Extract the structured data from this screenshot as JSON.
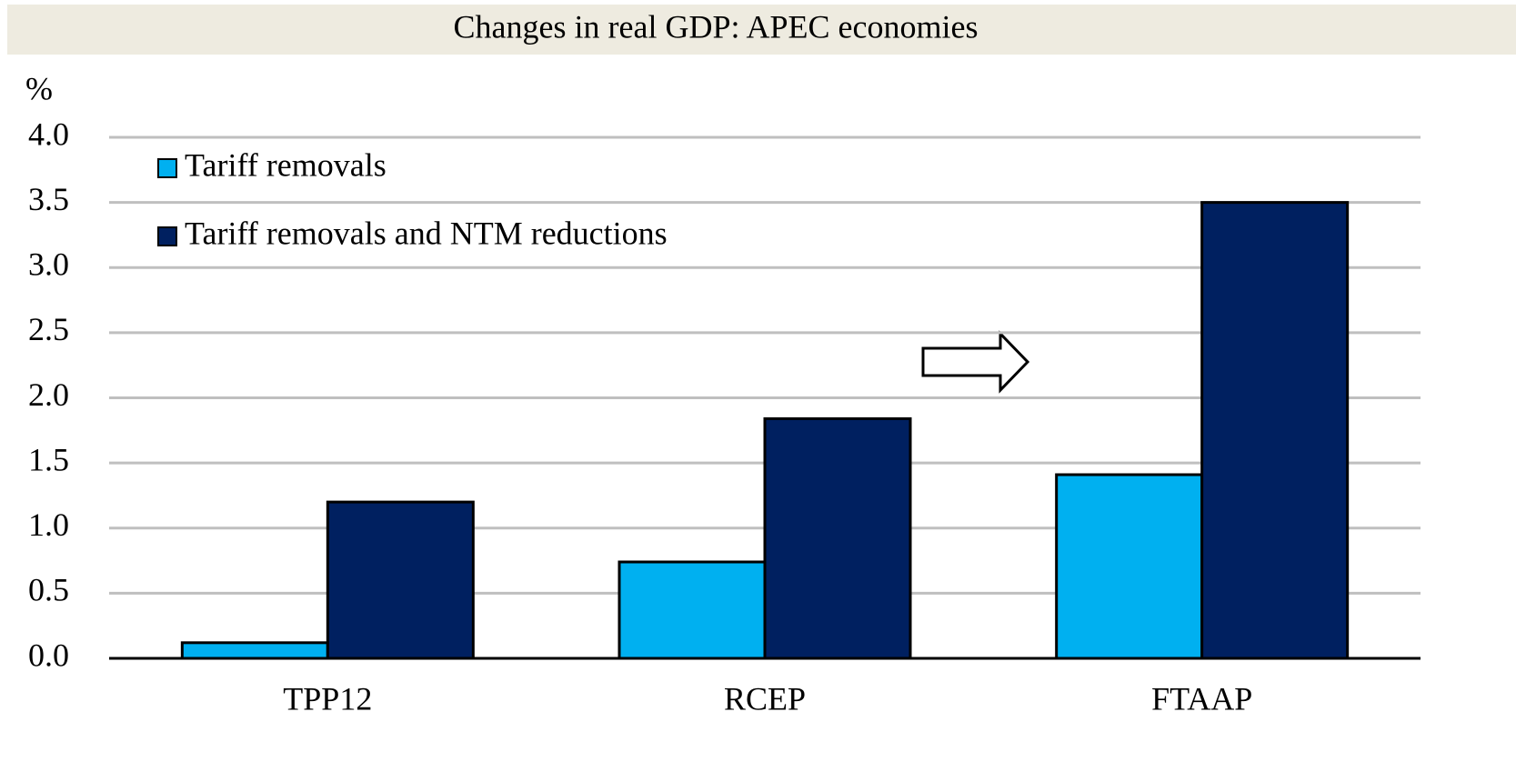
{
  "chart_data": {
    "type": "bar",
    "title": "Changes in real GDP: APEC economies",
    "y_label": "%",
    "categories": [
      "TPP12",
      "RCEP",
      "FTAAP"
    ],
    "series": [
      {
        "name": "Tariff removals",
        "color": "#00b0f0",
        "values": [
          0.12,
          0.74,
          1.41
        ]
      },
      {
        "name": "Tariff removals and NTM reductions",
        "color": "#002060",
        "values": [
          1.2,
          1.84,
          3.5
        ]
      }
    ],
    "ylim": [
      0,
      4
    ],
    "yticks": [
      {
        "value": 0,
        "label": "0.0"
      },
      0.5,
      {
        "value": 1,
        "label": "1.0"
      },
      1.5,
      {
        "value": 2,
        "label": "2.0"
      },
      2.5,
      {
        "value": 3,
        "label": "3.0"
      },
      3.5,
      {
        "value": 4,
        "label": "4.0"
      }
    ],
    "grid": true,
    "legend": "upper left"
  }
}
